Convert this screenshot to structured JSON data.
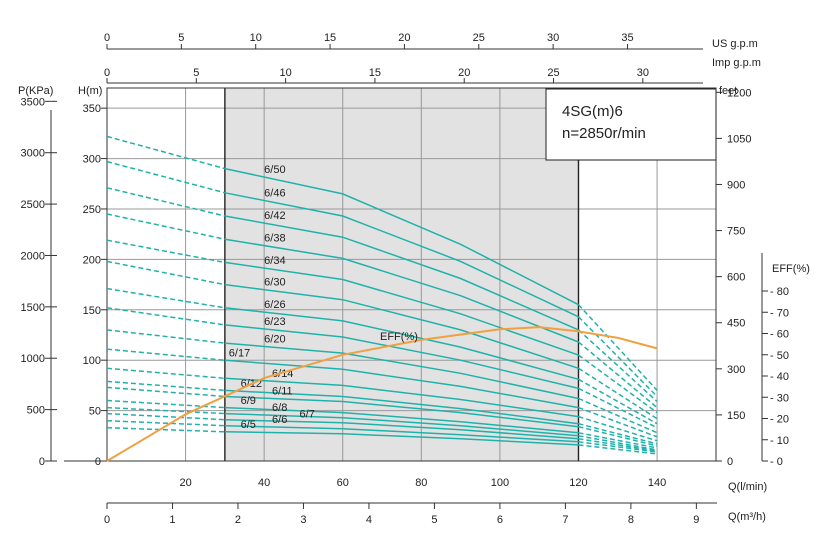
{
  "chart_data": {
    "type": "line",
    "model_label": "4SG(m)6",
    "speed_label": "n=2850r/min",
    "units": {
      "us_gpm": "US  g.p.m",
      "imp_gpm": "Imp  g.p.m",
      "pressure": "P(KPa)",
      "head_m": "H(m)",
      "feet": "feet",
      "eff": "EFF(%)",
      "flow_lmin": "Q(l/min)",
      "flow_m3h": "Q(m³/h)",
      "eff_curve_label": "EFF(%)"
    },
    "x_lmin": {
      "range": [
        0,
        155
      ],
      "ticks": [
        20,
        40,
        60,
        80,
        100,
        120,
        140
      ]
    },
    "x_m3h": {
      "ticks": [
        0,
        1,
        2,
        3,
        4,
        5,
        6,
        7,
        8,
        9
      ]
    },
    "x_usgpm": {
      "ticks": [
        0,
        5,
        10,
        15,
        20,
        25,
        30,
        35
      ]
    },
    "x_impgpm": {
      "ticks": [
        0,
        5,
        10,
        15,
        20,
        25,
        30
      ]
    },
    "y_head": {
      "range": [
        0,
        370
      ],
      "ticks": [
        0,
        50,
        100,
        150,
        200,
        250,
        300,
        350
      ]
    },
    "y_kpa": {
      "ticks": [
        0,
        500,
        1000,
        1500,
        2000,
        2500,
        3000,
        3500
      ]
    },
    "y_feet": {
      "ticks": [
        0,
        150,
        300,
        450,
        600,
        750,
        900,
        1050,
        1200
      ]
    },
    "y_eff": {
      "ticks": [
        0,
        10,
        20,
        30,
        40,
        50,
        60,
        70,
        80
      ]
    },
    "operating_range_lmin": [
      30,
      120
    ],
    "series": [
      {
        "name": "6/50",
        "values": [
          322,
          290,
          265,
          215,
          155,
          70
        ]
      },
      {
        "name": "6/46",
        "values": [
          297,
          266,
          243,
          198,
          143,
          64
        ]
      },
      {
        "name": "6/42",
        "values": [
          271,
          243,
          222,
          181,
          130,
          59
        ]
      },
      {
        "name": "6/38",
        "values": [
          245,
          220,
          201,
          164,
          118,
          53
        ]
      },
      {
        "name": "6/34",
        "values": [
          219,
          197,
          180,
          146,
          105,
          48
        ]
      },
      {
        "name": "6/30",
        "values": [
          198,
          175,
          160,
          130,
          92,
          42
        ]
      },
      {
        "name": "6/26",
        "values": [
          171,
          152,
          139,
          113,
          81,
          37
        ]
      },
      {
        "name": "6/23",
        "values": [
          152,
          135,
          123,
          100,
          72,
          33
        ]
      },
      {
        "name": "6/20",
        "values": [
          130,
          117,
          107,
          87,
          62,
          28
        ]
      },
      {
        "name": "6/17",
        "values": [
          111,
          100,
          91,
          74,
          53,
          24
        ]
      },
      {
        "name": "6/14",
        "values": [
          92,
          82,
          75,
          61,
          44,
          20
        ]
      },
      {
        "name": "6/12",
        "values": [
          79,
          70,
          64,
          52,
          37,
          17
        ]
      },
      {
        "name": "6/11",
        "values": [
          73,
          64,
          59,
          48,
          34,
          15
        ]
      },
      {
        "name": "6/9",
        "values": [
          60,
          53,
          48,
          39,
          28,
          13
        ]
      },
      {
        "name": "6/8",
        "values": [
          53,
          47,
          43,
          35,
          25,
          11
        ]
      },
      {
        "name": "6/7",
        "values": [
          47,
          41,
          38,
          31,
          22,
          10
        ]
      },
      {
        "name": "6/6",
        "values": [
          40,
          35,
          32,
          26,
          19,
          9
        ]
      },
      {
        "name": "6/5",
        "values": [
          33,
          29,
          27,
          22,
          16,
          7
        ]
      }
    ],
    "series_x": [
      0,
      30,
      60,
      90,
      120,
      140
    ],
    "eff_curve": {
      "x": [
        0,
        20,
        40,
        60,
        80,
        100,
        110,
        120,
        130,
        140
      ],
      "values": [
        0,
        22,
        39,
        50,
        57,
        62,
        63,
        61,
        58,
        53
      ]
    },
    "colors": {
      "curve": "#20b2aa",
      "eff": "#f0a040",
      "band": "#e2e2e2",
      "grid": "#999999"
    }
  }
}
